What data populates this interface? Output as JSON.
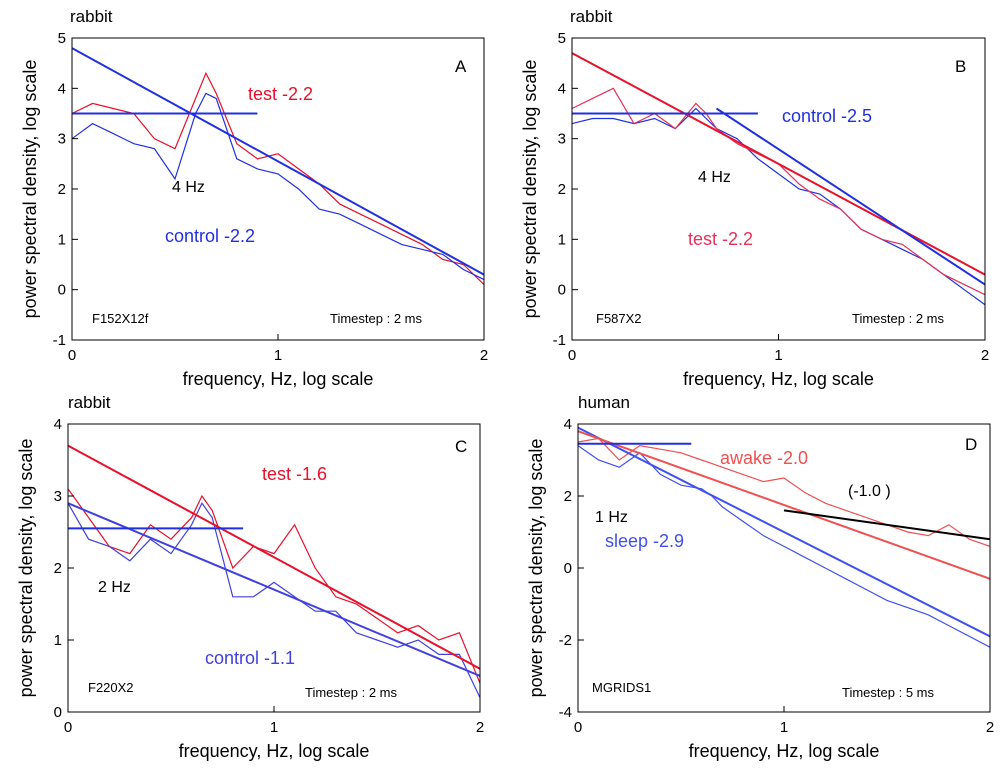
{
  "chart_data": [
    {
      "type": "line",
      "title": "rabbit",
      "panel": "A",
      "xlabel": "frequency, Hz, log scale",
      "ylabel": "power spectral density, log scale",
      "xlim": [
        0,
        2
      ],
      "ylim": [
        -1,
        5
      ],
      "xticks": [
        0,
        1,
        2
      ],
      "yticks": [
        -1,
        0,
        1,
        2,
        3,
        4,
        5
      ],
      "series": [
        {
          "name": "test -2.2",
          "color": "#e8102a",
          "x": [
            0,
            0.1,
            0.2,
            0.3,
            0.4,
            0.5,
            0.6,
            0.65,
            0.7,
            0.8,
            0.9,
            1.0,
            1.1,
            1.2,
            1.3,
            1.4,
            1.5,
            1.6,
            1.7,
            1.8,
            1.9,
            2.0
          ],
          "values": [
            3.5,
            3.7,
            3.6,
            3.5,
            3.0,
            2.8,
            3.8,
            4.3,
            3.9,
            2.9,
            2.6,
            2.7,
            2.4,
            2.1,
            1.7,
            1.5,
            1.3,
            1.1,
            0.9,
            0.6,
            0.5,
            0.1
          ]
        },
        {
          "name": "control  -2.2",
          "color": "#2030e0",
          "x": [
            0,
            0.1,
            0.2,
            0.3,
            0.4,
            0.5,
            0.6,
            0.65,
            0.7,
            0.8,
            0.9,
            1.0,
            1.1,
            1.2,
            1.3,
            1.4,
            1.5,
            1.6,
            1.7,
            1.8,
            1.9,
            2.0
          ],
          "values": [
            3.0,
            3.3,
            3.1,
            2.9,
            2.8,
            2.2,
            3.5,
            3.9,
            3.8,
            2.6,
            2.4,
            2.3,
            2.0,
            1.6,
            1.5,
            1.3,
            1.1,
            0.9,
            0.8,
            0.7,
            0.4,
            0.2
          ]
        },
        {
          "color": "#2030e0",
          "x": [
            0,
            2
          ],
          "values": [
            4.8,
            0.3
          ]
        },
        {
          "color": "#2030e0",
          "x": [
            0,
            0.9
          ],
          "values": [
            3.5,
            3.5
          ]
        }
      ],
      "annotations": [
        {
          "text": "4 Hz",
          "color": "#000000"
        },
        {
          "text": "F152X12f",
          "color": "#000000"
        },
        {
          "text": "Timestep : 2 ms",
          "color": "#000000"
        }
      ]
    },
    {
      "type": "line",
      "title": "rabbit",
      "panel": "B",
      "xlabel": "frequency, Hz, log scale",
      "ylabel": "power spectral density, log scale",
      "xlim": [
        0,
        2
      ],
      "ylim": [
        -1,
        5
      ],
      "xticks": [
        0,
        1,
        2
      ],
      "yticks": [
        -1,
        0,
        1,
        2,
        3,
        4,
        5
      ],
      "series": [
        {
          "name": "control  -2.5",
          "color": "#2030e0",
          "x": [
            0,
            0.1,
            0.2,
            0.3,
            0.4,
            0.5,
            0.6,
            0.65,
            0.7,
            0.8,
            0.9,
            1.0,
            1.1,
            1.2,
            1.3,
            1.4,
            1.5,
            1.6,
            1.7,
            1.8,
            1.9,
            2.0
          ],
          "values": [
            3.3,
            3.4,
            3.4,
            3.3,
            3.4,
            3.2,
            3.6,
            3.4,
            3.2,
            3.0,
            2.6,
            2.3,
            2.0,
            1.9,
            1.6,
            1.2,
            1.0,
            0.8,
            0.6,
            0.3,
            0.0,
            -0.3
          ]
        },
        {
          "name": "test  -2.2",
          "color": "#e8305a",
          "x": [
            0,
            0.1,
            0.2,
            0.3,
            0.4,
            0.5,
            0.6,
            0.65,
            0.7,
            0.8,
            0.9,
            1.0,
            1.1,
            1.2,
            1.3,
            1.4,
            1.5,
            1.6,
            1.7,
            1.8,
            1.9,
            2.0
          ],
          "values": [
            3.6,
            3.8,
            4.0,
            3.3,
            3.5,
            3.2,
            3.7,
            3.5,
            3.2,
            2.9,
            2.7,
            2.5,
            2.1,
            1.8,
            1.6,
            1.2,
            1.0,
            0.9,
            0.6,
            0.3,
            0.1,
            -0.1
          ]
        },
        {
          "color": "#e8102a",
          "x": [
            0,
            2
          ],
          "values": [
            4.7,
            0.3
          ]
        },
        {
          "color": "#2030e0",
          "x": [
            0.7,
            2
          ],
          "values": [
            3.6,
            0.1
          ]
        },
        {
          "color": "#2030e0",
          "x": [
            0,
            0.9
          ],
          "values": [
            3.5,
            3.5
          ]
        }
      ],
      "annotations": [
        {
          "text": "4 Hz",
          "color": "#000000"
        },
        {
          "text": "F587X2",
          "color": "#000000"
        },
        {
          "text": "Timestep : 2 ms",
          "color": "#000000"
        }
      ]
    },
    {
      "type": "line",
      "title": "rabbit",
      "panel": "C",
      "xlabel": "frequency, Hz, log scale",
      "ylabel": "power spectral density, log scale",
      "xlim": [
        0,
        2
      ],
      "ylim": [
        0,
        4
      ],
      "xticks": [
        0,
        1,
        2
      ],
      "yticks": [
        0,
        1,
        2,
        3,
        4
      ],
      "series": [
        {
          "name": "test  -1.6",
          "color": "#e8102a",
          "x": [
            0,
            0.1,
            0.2,
            0.3,
            0.4,
            0.5,
            0.6,
            0.65,
            0.7,
            0.8,
            0.9,
            1.0,
            1.1,
            1.2,
            1.3,
            1.4,
            1.5,
            1.6,
            1.7,
            1.8,
            1.9,
            2.0
          ],
          "values": [
            3.1,
            2.7,
            2.3,
            2.2,
            2.6,
            2.4,
            2.7,
            3.0,
            2.8,
            2.0,
            2.3,
            2.2,
            2.6,
            2.0,
            1.6,
            1.5,
            1.3,
            1.1,
            1.2,
            1.0,
            1.1,
            0.4
          ]
        },
        {
          "name": "control  -1.1",
          "color": "#4040e0",
          "x": [
            0,
            0.1,
            0.2,
            0.3,
            0.4,
            0.5,
            0.6,
            0.65,
            0.7,
            0.8,
            0.9,
            1.0,
            1.1,
            1.2,
            1.3,
            1.4,
            1.5,
            1.6,
            1.7,
            1.8,
            1.9,
            2.0
          ],
          "values": [
            2.9,
            2.4,
            2.3,
            2.1,
            2.4,
            2.2,
            2.6,
            2.9,
            2.7,
            1.6,
            1.6,
            1.8,
            1.6,
            1.4,
            1.4,
            1.1,
            1.0,
            0.9,
            1.0,
            0.8,
            0.8,
            0.2
          ]
        },
        {
          "color": "#e8102a",
          "x": [
            0,
            2
          ],
          "values": [
            3.7,
            0.6
          ]
        },
        {
          "color": "#4040e0",
          "x": [
            0,
            2
          ],
          "values": [
            2.9,
            0.5
          ]
        },
        {
          "color": "#2030e0",
          "x": [
            0,
            0.85
          ],
          "values": [
            2.55,
            2.55
          ]
        }
      ],
      "annotations": [
        {
          "text": "2 Hz",
          "color": "#000000"
        },
        {
          "text": "F220X2",
          "color": "#000000"
        },
        {
          "text": "Timestep : 2 ms",
          "color": "#000000"
        }
      ]
    },
    {
      "type": "line",
      "title": "human",
      "panel": "D",
      "xlabel": "frequency, Hz, log scale",
      "ylabel": "power spectral density, log scale",
      "xlim": [
        0,
        2
      ],
      "ylim": [
        -4,
        4
      ],
      "xticks": [
        0,
        1,
        2
      ],
      "yticks": [
        -4,
        -2,
        0,
        2,
        4
      ],
      "series": [
        {
          "name": "awake  -2.0",
          "color": "#f05050",
          "x": [
            0,
            0.1,
            0.2,
            0.3,
            0.4,
            0.5,
            0.6,
            0.65,
            0.7,
            0.8,
            0.9,
            1.0,
            1.1,
            1.2,
            1.3,
            1.4,
            1.5,
            1.6,
            1.7,
            1.8,
            1.9,
            2.0
          ],
          "values": [
            3.5,
            3.6,
            3.0,
            3.4,
            3.3,
            3.2,
            3.0,
            2.9,
            2.8,
            2.6,
            2.4,
            2.5,
            2.1,
            1.8,
            1.6,
            1.4,
            1.2,
            1.0,
            0.9,
            1.2,
            0.8,
            0.6
          ]
        },
        {
          "name": "sleep -2.9",
          "color": "#4050f0",
          "x": [
            0,
            0.1,
            0.2,
            0.3,
            0.4,
            0.5,
            0.6,
            0.65,
            0.7,
            0.8,
            0.9,
            1.0,
            1.1,
            1.2,
            1.3,
            1.4,
            1.5,
            1.6,
            1.7,
            1.8,
            1.9,
            2.0
          ],
          "values": [
            3.4,
            3.0,
            2.8,
            3.2,
            2.6,
            2.3,
            2.2,
            2.0,
            1.7,
            1.3,
            0.9,
            0.6,
            0.3,
            0.0,
            -0.3,
            -0.6,
            -0.9,
            -1.1,
            -1.3,
            -1.6,
            -1.9,
            -2.2
          ]
        },
        {
          "color": "#4050f0",
          "x": [
            0,
            2
          ],
          "values": [
            3.9,
            -1.9
          ]
        },
        {
          "color": "#f05050",
          "x": [
            0,
            2
          ],
          "values": [
            3.8,
            -0.3
          ]
        },
        {
          "color": "#000000",
          "x": [
            1,
            2
          ],
          "values": [
            1.6,
            0.8
          ]
        },
        {
          "color": "#2030e0",
          "x": [
            0,
            0.55
          ],
          "values": [
            3.45,
            3.45
          ]
        }
      ],
      "annotations": [
        {
          "text": "1 Hz",
          "color": "#000000"
        },
        {
          "text": "(-1.0 )",
          "color": "#000000"
        },
        {
          "text": "MGRIDS1",
          "color": "#000000"
        },
        {
          "text": "Timestep : 5 ms",
          "color": "#000000"
        }
      ]
    }
  ]
}
